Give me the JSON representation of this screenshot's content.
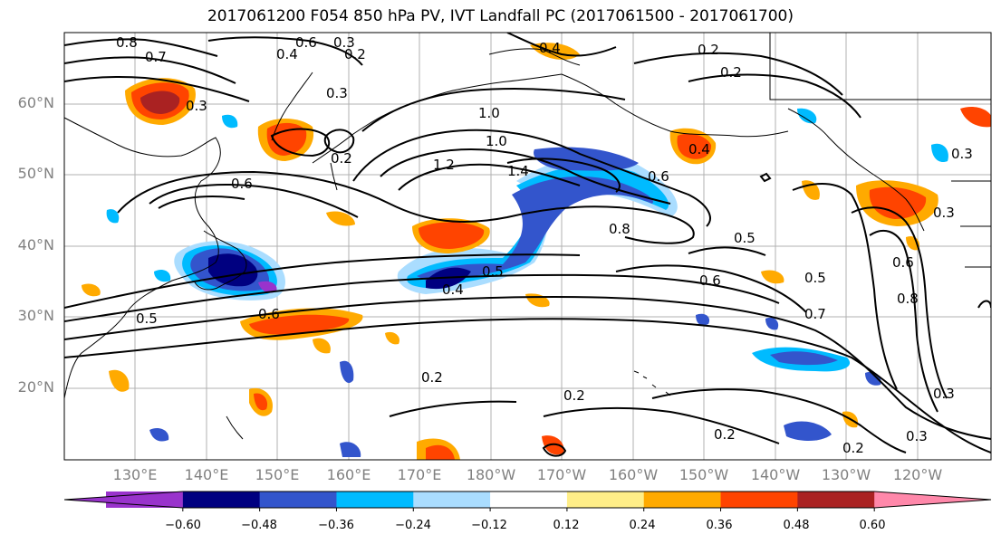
{
  "title": "2017061200 F054 850 hPa PV, IVT Landfall PC (2017061500 - 2017061700)",
  "lat_labels": [
    "60°N",
    "50°N",
    "40°N",
    "30°N",
    "20°N"
  ],
  "lon_labels": [
    "130°E",
    "140°E",
    "150°E",
    "160°E",
    "170°E",
    "180°W",
    "170°W",
    "160°W",
    "150°W",
    "140°W",
    "130°W",
    "120°W"
  ],
  "colorbar": {
    "colors": [
      "#9933cc",
      "#000080",
      "#3355cc",
      "#00bbff",
      "#aaddff",
      "#ffffff",
      "#ffee88",
      "#ffaa00",
      "#ff4400",
      "#aa2222",
      "#ff88aa"
    ],
    "tick_labels": [
      "−0.60",
      "−0.48",
      "−0.36",
      "−0.24",
      "−0.12",
      "0.12",
      "0.24",
      "0.36",
      "0.48",
      "0.60"
    ]
  },
  "contour_labels": [
    "0.8",
    "0.7",
    "0.6",
    "0.3",
    "0.4",
    "0.2",
    "0.3",
    "0.3",
    "0.4",
    "0.2",
    "1.0",
    "1.0",
    "1.2",
    "1.4",
    "0.6",
    "0.8",
    "0.5",
    "0.6",
    "0.5",
    "0.7",
    "0.8",
    "0.4",
    "0.5",
    "0.6",
    "0.5",
    "0.6",
    "0.3",
    "0.2",
    "0.2",
    "0.2",
    "0.2",
    "0.3",
    "0.3",
    "0.4",
    "0.6",
    "0.2",
    "0.2",
    "0.3"
  ]
}
